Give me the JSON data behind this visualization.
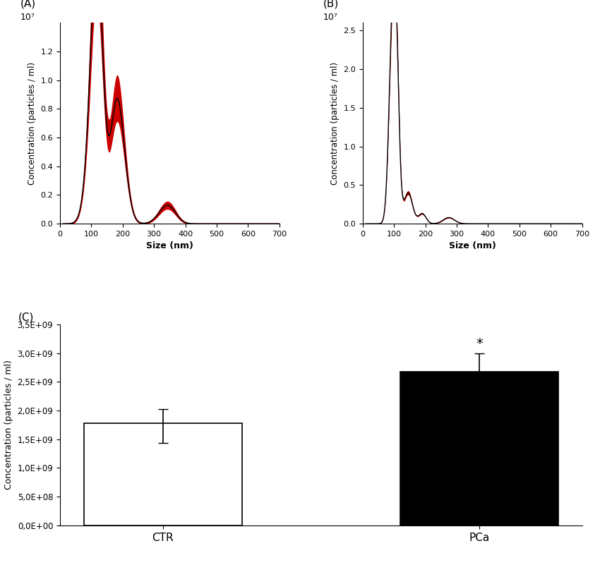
{
  "panel_A_label": "(A)",
  "panel_B_label": "(B)",
  "panel_C_label": "(C)",
  "xlabel": "Size (nm)",
  "ylabel_line": "Concentration (particles / ml)",
  "ylabel_bar": "Concentration (particles / ml)",
  "xlim_line": [
    0,
    700
  ],
  "ylim_A": [
    0,
    1.4
  ],
  "ylim_B": [
    0,
    2.6
  ],
  "exponent_label": "10⁷",
  "xticks_line": [
    0,
    100,
    200,
    300,
    400,
    500,
    600,
    700
  ],
  "yticks_A": [
    0,
    0.2,
    0.4,
    0.6,
    0.8,
    1.0,
    1.2
  ],
  "yticks_B": [
    0,
    0.5,
    1.0,
    1.5,
    2.0,
    2.5
  ],
  "line_color": "#CC0000",
  "fill_color": "#CC0000",
  "center_line_color": "#000000",
  "bar_categories": [
    "CTR",
    "PCa"
  ],
  "bar_values": [
    1780000000.0,
    2680000000.0
  ],
  "bar_errors_lo": [
    350000000.0,
    280000000.0
  ],
  "bar_errors_hi": [
    250000000.0,
    320000000.0
  ],
  "bar_colors": [
    "#ffffff",
    "#000000"
  ],
  "bar_edge_colors": [
    "#000000",
    "#000000"
  ],
  "ylim_bar": [
    0,
    3500000000.0
  ],
  "yticks_bar": [
    0,
    500000000.0,
    1000000000.0,
    1500000000.0,
    2000000000.0,
    2500000000.0,
    3000000000.0,
    3500000000.0
  ],
  "ytick_labels_bar": [
    "0,0E+00",
    "5,0E+08",
    "1,0E+09",
    "1,5E+09",
    "2,0E+09",
    "2,5E+09",
    "3,0E+09",
    "3,5E+09"
  ],
  "significance_label": "*"
}
